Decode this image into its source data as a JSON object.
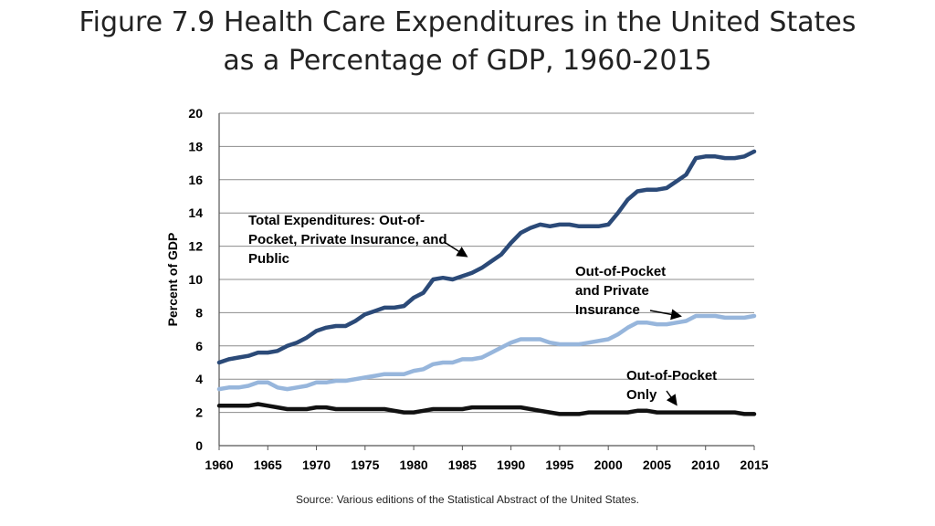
{
  "title": {
    "line1": "Figure 7.9 Health Care Expenditures in the United States",
    "line2": "as a Percentage of GDP, 1960-2015"
  },
  "source": "Source: Various editions of the Statistical Abstract of the United States.",
  "colors": {
    "total": "#2b4a78",
    "private": "#97b6dc",
    "oop": "#111111",
    "grid": "#8c8c8c"
  },
  "chart_data": {
    "type": "line",
    "title": "",
    "xlabel": "",
    "ylabel": "Percent of GDP",
    "xlim": [
      1960,
      2015
    ],
    "ylim": [
      0,
      20
    ],
    "xticks": [
      "1960",
      "1965",
      "1970",
      "1975",
      "1980",
      "1985",
      "1990",
      "1995",
      "2000",
      "2005",
      "2010",
      "2015"
    ],
    "yticks": [
      "0",
      "2",
      "4",
      "6",
      "8",
      "10",
      "12",
      "14",
      "16",
      "18",
      "20"
    ],
    "grid": true,
    "x": [
      1960,
      1961,
      1962,
      1963,
      1964,
      1965,
      1966,
      1967,
      1968,
      1969,
      1970,
      1971,
      1972,
      1973,
      1974,
      1975,
      1976,
      1977,
      1978,
      1979,
      1980,
      1981,
      1982,
      1983,
      1984,
      1985,
      1986,
      1987,
      1988,
      1989,
      1990,
      1991,
      1992,
      1993,
      1994,
      1995,
      1996,
      1997,
      1998,
      1999,
      2000,
      2001,
      2002,
      2003,
      2004,
      2005,
      2006,
      2007,
      2008,
      2009,
      2010,
      2011,
      2012,
      2013,
      2014,
      2015
    ],
    "series": [
      {
        "name": "Total Expenditures",
        "label_lines": [
          "Total Expenditures: Out-of-",
          "Pocket, Private Insurance, and",
          "Public"
        ],
        "values": [
          5.0,
          5.2,
          5.3,
          5.4,
          5.6,
          5.6,
          5.7,
          6.0,
          6.2,
          6.5,
          6.9,
          7.1,
          7.2,
          7.2,
          7.5,
          7.9,
          8.1,
          8.3,
          8.3,
          8.4,
          8.9,
          9.2,
          10.0,
          10.1,
          10.0,
          10.2,
          10.4,
          10.7,
          11.1,
          11.5,
          12.2,
          12.8,
          13.1,
          13.3,
          13.2,
          13.3,
          13.3,
          13.2,
          13.2,
          13.2,
          13.3,
          14.0,
          14.8,
          15.3,
          15.4,
          15.4,
          15.5,
          15.9,
          16.3,
          17.3,
          17.4,
          17.4,
          17.3,
          17.3,
          17.4,
          17.7
        ]
      },
      {
        "name": "Out-of-Pocket and Private Insurance",
        "label_lines": [
          "Out-of-Pocket",
          "and Private",
          "Insurance"
        ],
        "values": [
          3.4,
          3.5,
          3.5,
          3.6,
          3.8,
          3.8,
          3.5,
          3.4,
          3.5,
          3.6,
          3.8,
          3.8,
          3.9,
          3.9,
          4.0,
          4.1,
          4.2,
          4.3,
          4.3,
          4.3,
          4.5,
          4.6,
          4.9,
          5.0,
          5.0,
          5.2,
          5.2,
          5.3,
          5.6,
          5.9,
          6.2,
          6.4,
          6.4,
          6.4,
          6.2,
          6.1,
          6.1,
          6.1,
          6.2,
          6.3,
          6.4,
          6.7,
          7.1,
          7.4,
          7.4,
          7.3,
          7.3,
          7.4,
          7.5,
          7.8,
          7.8,
          7.8,
          7.7,
          7.7,
          7.7,
          7.8
        ]
      },
      {
        "name": "Out-of-Pocket Only",
        "label_lines": [
          "Out-of-Pocket",
          "Only"
        ],
        "values": [
          2.4,
          2.4,
          2.4,
          2.4,
          2.5,
          2.4,
          2.3,
          2.2,
          2.2,
          2.2,
          2.3,
          2.3,
          2.2,
          2.2,
          2.2,
          2.2,
          2.2,
          2.2,
          2.1,
          2.0,
          2.0,
          2.1,
          2.2,
          2.2,
          2.2,
          2.2,
          2.3,
          2.3,
          2.3,
          2.3,
          2.3,
          2.3,
          2.2,
          2.1,
          2.0,
          1.9,
          1.9,
          1.9,
          2.0,
          2.0,
          2.0,
          2.0,
          2.0,
          2.1,
          2.1,
          2.0,
          2.0,
          2.0,
          2.0,
          2.0,
          2.0,
          2.0,
          2.0,
          2.0,
          1.9,
          1.9
        ]
      }
    ]
  }
}
